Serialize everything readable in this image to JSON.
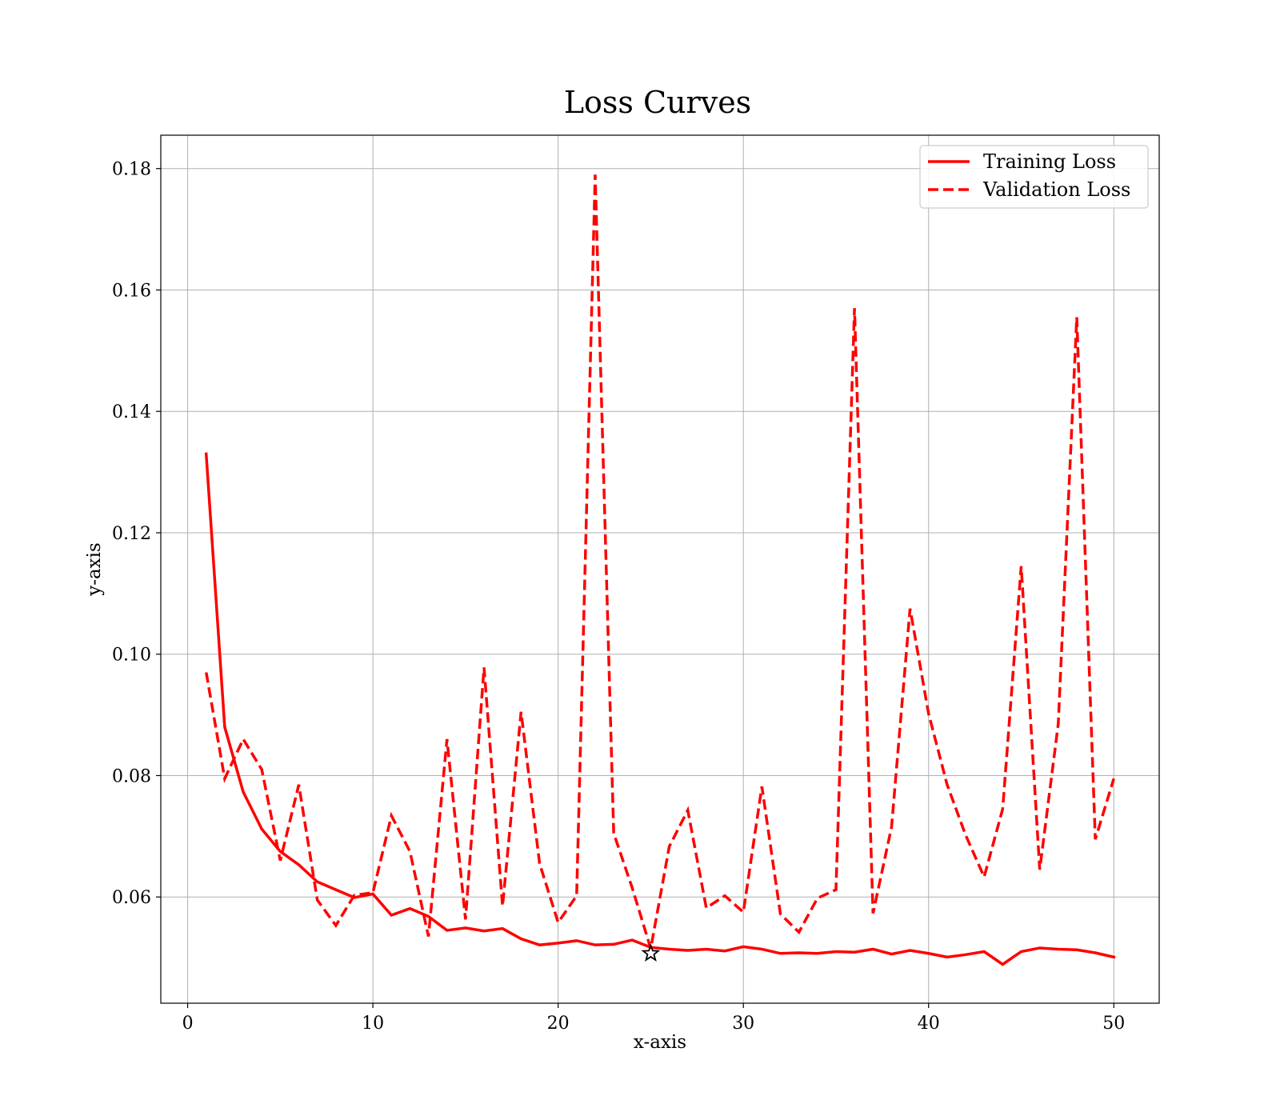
{
  "chart_data": {
    "type": "line",
    "title": "Loss Curves",
    "xlabel": "x-axis",
    "ylabel": "y-axis",
    "xlim": [
      -1.45,
      52.45
    ],
    "ylim": [
      0.0425,
      0.1855
    ],
    "xticks": [
      0,
      10,
      20,
      30,
      40,
      50
    ],
    "yticks": [
      0.06,
      0.08,
      0.1,
      0.12,
      0.14,
      0.16,
      0.18
    ],
    "xtick_labels": [
      "0",
      "10",
      "20",
      "30",
      "40",
      "50"
    ],
    "ytick_labels": [
      "0.06",
      "0.08",
      "0.10",
      "0.12",
      "0.14",
      "0.16",
      "0.18"
    ],
    "grid": true,
    "legend_position": "top-right",
    "x": [
      1,
      2,
      3,
      4,
      5,
      6,
      7,
      8,
      9,
      10,
      11,
      12,
      13,
      14,
      15,
      16,
      17,
      18,
      19,
      20,
      21,
      22,
      23,
      24,
      25,
      26,
      27,
      28,
      29,
      30,
      31,
      32,
      33,
      34,
      35,
      36,
      37,
      38,
      39,
      40,
      41,
      42,
      43,
      44,
      45,
      46,
      47,
      48,
      49,
      50
    ],
    "series": [
      {
        "name": "Training Loss",
        "color": "#ff0000",
        "style": "solid",
        "values": [
          0.133,
          0.088,
          0.0773,
          0.0712,
          0.0675,
          0.0653,
          0.0625,
          0.0612,
          0.0599,
          0.0605,
          0.057,
          0.0581,
          0.0568,
          0.0545,
          0.0549,
          0.0544,
          0.0548,
          0.0531,
          0.0521,
          0.0524,
          0.0528,
          0.0521,
          0.0522,
          0.0529,
          0.0517,
          0.0514,
          0.0512,
          0.0514,
          0.0511,
          0.0518,
          0.0514,
          0.0507,
          0.0508,
          0.0507,
          0.051,
          0.0509,
          0.0514,
          0.0506,
          0.0512,
          0.0507,
          0.0501,
          0.0505,
          0.051,
          0.0489,
          0.051,
          0.0516,
          0.0514,
          0.0513,
          0.0508,
          0.0501
        ]
      },
      {
        "name": "Validation Loss",
        "color": "#ff0000",
        "style": "dashed",
        "values": [
          0.097,
          0.0795,
          0.086,
          0.081,
          0.066,
          0.0785,
          0.0595,
          0.0553,
          0.0603,
          0.0607,
          0.0734,
          0.0675,
          0.0535,
          0.086,
          0.0563,
          0.0978,
          0.0585,
          0.0905,
          0.0655,
          0.0558,
          0.0602,
          0.179,
          0.0705,
          0.0615,
          0.0515,
          0.0683,
          0.0743,
          0.0582,
          0.0602,
          0.0575,
          0.0782,
          0.0572,
          0.0542,
          0.0598,
          0.0612,
          0.157,
          0.0573,
          0.0715,
          0.1075,
          0.0902,
          0.0785,
          0.0702,
          0.0633,
          0.0745,
          0.1145,
          0.0645,
          0.0885,
          0.1555,
          0.0695,
          0.0795
        ]
      }
    ],
    "markers": [
      {
        "label": "★",
        "x": 25,
        "y": 0.0507,
        "color": "#000000"
      }
    ]
  }
}
